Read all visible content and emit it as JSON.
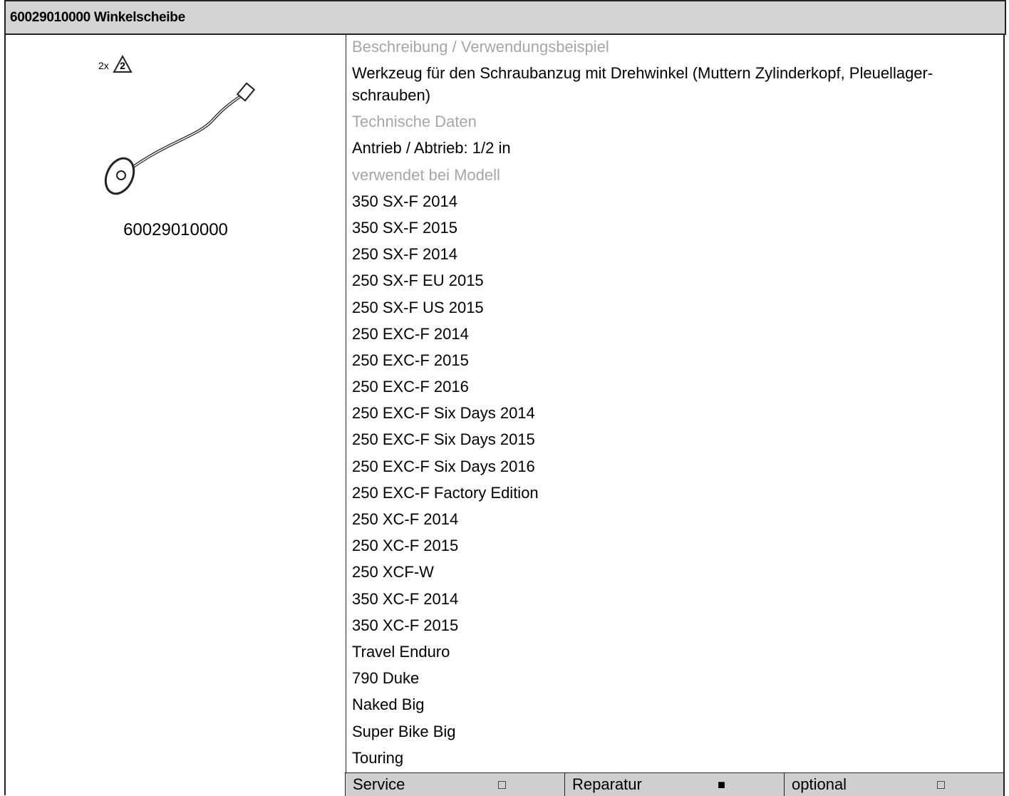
{
  "header": {
    "title": "60029010000 Winkelscheibe"
  },
  "image": {
    "quantity": "2x",
    "badge": "2",
    "caption": "60029010000"
  },
  "sections": [
    {
      "heading": "Beschreibung / Verwendungsbeispiel",
      "lines": [
        "Werkzeug für den Schraubanzug mit Drehwinkel (Muttern Zylinderkopf, Pleuellager-schrauben)"
      ]
    },
    {
      "heading": "Technische Daten",
      "lines": [
        "Antrieb / Abtrieb: 1/2 in"
      ]
    },
    {
      "heading": "verwendet bei Modell",
      "lines": [
        "350 SX-F 2014",
        "350 SX-F 2015",
        "250 SX-F 2014",
        "250 SX-F EU 2015",
        "250 SX-F US 2015",
        "250 EXC-F 2014",
        "250 EXC-F 2015",
        "250 EXC-F 2016",
        "250 EXC-F Six Days 2014",
        "250 EXC-F Six Days 2015",
        "250 EXC-F Six Days 2016",
        "250 EXC-F Factory Edition",
        "250 XC-F 2014",
        "250 XC-F 2015",
        "250 XCF-W",
        "350 XC-F 2014",
        "350 XC-F 2015",
        "Travel Enduro",
        "790 Duke",
        "Naked Big",
        "Super Bike Big",
        "Touring"
      ]
    }
  ],
  "footer": [
    {
      "label": "Service",
      "mark": "□"
    },
    {
      "label": "Reparatur",
      "mark": "■"
    },
    {
      "label": "optional",
      "mark": "□"
    }
  ]
}
